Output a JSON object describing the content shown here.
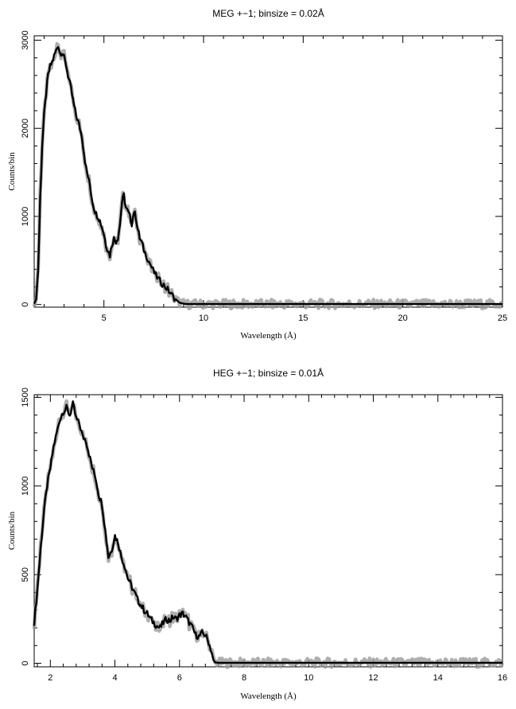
{
  "chart_data": [
    {
      "type": "line",
      "title": "MEG +−1; binsize = 0.02Å",
      "xlabel": "Wavelength (Å)",
      "ylabel": "Counts/bin",
      "xlim": [
        1.5,
        25
      ],
      "ylim": [
        -30,
        3050
      ],
      "x_ticks": [
        5,
        10,
        15,
        20,
        25
      ],
      "y_ticks": [
        0,
        1000,
        2000,
        3000
      ],
      "grid": false,
      "series": [
        {
          "x": [
            1.5,
            1.6,
            1.7,
            1.8,
            1.9,
            2.0,
            2.1,
            2.2,
            2.3,
            2.4,
            2.5,
            2.6,
            2.7,
            2.8,
            2.9,
            3.0,
            3.1,
            3.2,
            3.3,
            3.4,
            3.5,
            3.6,
            3.7,
            3.8,
            3.9,
            4.0,
            4.1,
            4.2,
            4.3,
            4.4,
            4.5,
            4.6,
            4.7,
            4.8,
            4.9,
            5.0,
            5.1,
            5.2,
            5.3,
            5.4,
            5.5,
            5.6,
            5.7,
            5.8,
            5.9,
            6.0,
            6.1,
            6.2,
            6.3,
            6.4,
            6.5,
            6.6,
            6.7,
            6.8,
            6.9,
            7.0,
            7.2,
            7.4,
            7.6,
            7.8,
            8.0,
            8.2,
            8.4,
            8.6,
            8.8,
            9.0,
            9.2,
            9.4,
            12.0,
            15.0,
            20.0,
            25.0
          ],
          "values": [
            10,
            60,
            400,
            1200,
            1800,
            2150,
            2400,
            2600,
            2700,
            2750,
            2820,
            2880,
            2950,
            2850,
            2870,
            2800,
            2720,
            2600,
            2500,
            2380,
            2250,
            2150,
            2080,
            2000,
            1900,
            1720,
            1550,
            1450,
            1350,
            1200,
            1100,
            1030,
            1000,
            950,
            880,
            800,
            680,
            620,
            560,
            680,
            750,
            720,
            760,
            900,
            1150,
            1240,
            1100,
            1050,
            1000,
            920,
            1050,
            1000,
            850,
            750,
            700,
            620,
            520,
            420,
            330,
            270,
            220,
            170,
            110,
            60,
            20,
            10,
            5,
            5,
            5,
            5,
            5,
            5
          ]
        }
      ]
    },
    {
      "type": "line",
      "title": "HEG +−1; binsize = 0.01Å",
      "xlabel": "Wavelength (Å)",
      "ylabel": "Counts/bin",
      "xlim": [
        1.5,
        16
      ],
      "ylim": [
        -20,
        1515
      ],
      "x_ticks": [
        2,
        4,
        6,
        8,
        10,
        12,
        14,
        16
      ],
      "y_ticks": [
        0,
        500,
        1000,
        1500
      ],
      "grid": false,
      "series": [
        {
          "x": [
            1.5,
            1.6,
            1.7,
            1.8,
            1.9,
            2.0,
            2.1,
            2.2,
            2.3,
            2.4,
            2.5,
            2.6,
            2.7,
            2.8,
            2.9,
            3.0,
            3.1,
            3.2,
            3.3,
            3.4,
            3.5,
            3.6,
            3.7,
            3.8,
            3.9,
            4.0,
            4.1,
            4.2,
            4.3,
            4.4,
            4.5,
            4.6,
            4.7,
            4.8,
            4.9,
            5.0,
            5.1,
            5.2,
            5.3,
            5.4,
            5.5,
            5.6,
            5.7,
            5.8,
            5.9,
            6.0,
            6.1,
            6.2,
            6.3,
            6.4,
            6.5,
            6.6,
            6.7,
            6.8,
            6.9,
            7.0,
            7.05,
            7.1,
            7.2,
            8.0,
            10.0,
            12.0,
            14.0,
            16.0
          ],
          "values": [
            230,
            420,
            650,
            850,
            1000,
            1100,
            1220,
            1300,
            1380,
            1420,
            1440,
            1400,
            1460,
            1380,
            1350,
            1280,
            1260,
            1180,
            1100,
            1050,
            950,
            900,
            750,
            600,
            640,
            720,
            680,
            600,
            550,
            480,
            440,
            400,
            360,
            330,
            300,
            280,
            250,
            230,
            210,
            200,
            230,
            250,
            240,
            260,
            250,
            270,
            280,
            260,
            230,
            200,
            160,
            150,
            170,
            160,
            120,
            60,
            20,
            5,
            3,
            3,
            3,
            3,
            3,
            3
          ]
        }
      ]
    }
  ]
}
